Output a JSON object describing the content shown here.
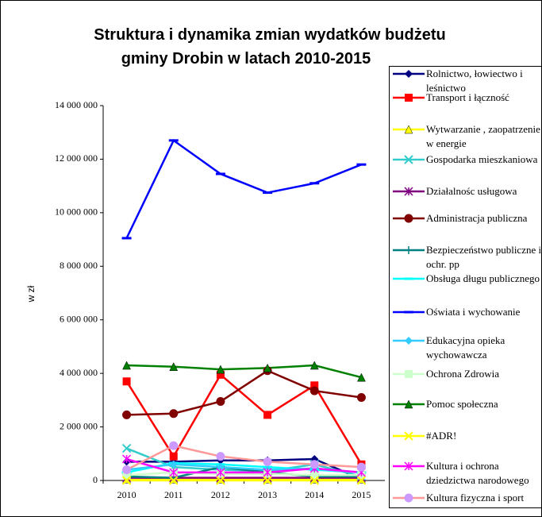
{
  "chart_data": {
    "type": "line",
    "title": "Struktura i dynamika zmian wydatków budżetu gminy Drobin w latach 2010-2015",
    "y_label": "w zł",
    "categories": [
      "2010",
      "2011",
      "2012",
      "2013",
      "2014",
      "2015"
    ],
    "ylim": [
      0,
      14000000
    ],
    "yticks": [
      {
        "value": 0,
        "label": "0"
      },
      {
        "value": 2000000,
        "label": "2 000 000"
      },
      {
        "value": 4000000,
        "label": "4 000 000"
      },
      {
        "value": 6000000,
        "label": "6 000 000"
      },
      {
        "value": 8000000,
        "label": "8 000 000"
      },
      {
        "value": 10000000,
        "label": "10 000 000"
      },
      {
        "value": 12000000,
        "label": "12 000 000"
      },
      {
        "value": 14000000,
        "label": "14 000 000"
      }
    ],
    "legend": "right",
    "series": [
      {
        "name": "Rolnictwo, łowiectwo i leśnictwo",
        "color": "#000080",
        "marker": "diamond",
        "values": [
          700000,
          700000,
          750000,
          750000,
          800000,
          50000
        ]
      },
      {
        "name": "Transport i łączność",
        "color": "#ff0000",
        "marker": "square",
        "values": [
          3700000,
          900000,
          3950000,
          2450000,
          3550000,
          600000
        ]
      },
      {
        "name": "Wytwarzanie , zaopatrzenie w energie",
        "color": "#ffff00",
        "marker": "triangle",
        "values": [
          50000,
          50000,
          50000,
          50000,
          50000,
          50000
        ]
      },
      {
        "name": "Gospodarka mieszkaniowa",
        "color": "#33cccc",
        "marker": "x",
        "values": [
          1200000,
          500000,
          400000,
          350000,
          600000,
          150000
        ]
      },
      {
        "name": "Działalnośc usługowa",
        "color": "#800080",
        "marker": "star",
        "values": [
          100000,
          100000,
          100000,
          100000,
          100000,
          100000
        ]
      },
      {
        "name": "Administracja publiczna",
        "color": "#800000",
        "marker": "circle",
        "values": [
          2450000,
          2500000,
          2950000,
          4100000,
          3350000,
          3100000
        ]
      },
      {
        "name": "Bezpieczeństwo publiczne i ochr. pp",
        "color": "#008080",
        "marker": "plus",
        "values": [
          150000,
          100000,
          500000,
          300000,
          150000,
          150000
        ]
      },
      {
        "name": "Obsługa długu publicznego",
        "color": "#00ffff",
        "marker": "dash",
        "values": [
          300000,
          650000,
          600000,
          500000,
          400000,
          300000
        ]
      },
      {
        "name": "Oświata i wychowanie",
        "color": "#0000ff",
        "marker": "dash",
        "values": [
          9050000,
          12700000,
          11450000,
          10750000,
          11100000,
          11800000
        ]
      },
      {
        "name": "Edukacyjna opieka wychowawcza",
        "color": "#33ccff",
        "marker": "diamond",
        "values": [
          400000,
          600000,
          500000,
          400000,
          450000,
          300000
        ]
      },
      {
        "name": "Ochrona Zdrowia",
        "color": "#ccffcc",
        "marker": "square",
        "values": [
          200000,
          300000,
          250000,
          250000,
          200000,
          200000
        ]
      },
      {
        "name": "Pomoc społeczna",
        "color": "#008000",
        "marker": "triangle",
        "values": [
          4300000,
          4250000,
          4150000,
          4200000,
          4300000,
          3850000
        ]
      },
      {
        "name": "#ADR!",
        "color": "#ffff00",
        "marker": "x",
        "values": [
          0,
          0,
          0,
          0,
          0,
          0
        ]
      },
      {
        "name": "Kultura i ochrona dziedzictwa narodowego",
        "color": "#ff00ff",
        "marker": "star",
        "values": [
          800000,
          300000,
          300000,
          300000,
          450000,
          300000
        ]
      },
      {
        "name": "Kultura fizyczna i sport",
        "color": "#ff9999",
        "marker_color": "#cc99ff",
        "marker": "circle",
        "values": [
          400000,
          1300000,
          900000,
          700000,
          600000,
          500000
        ]
      }
    ]
  }
}
